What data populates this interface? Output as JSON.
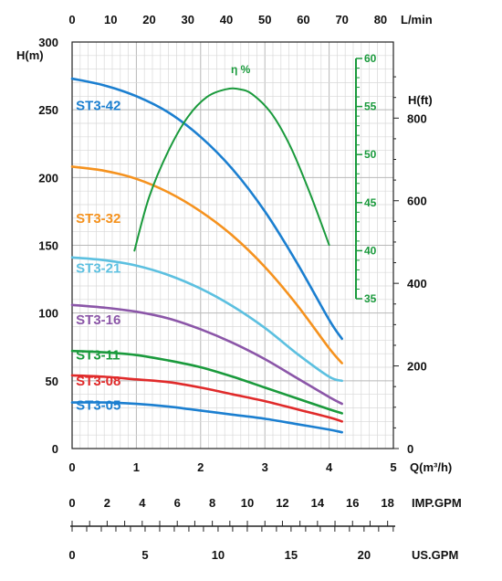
{
  "chart_data": {
    "type": "line",
    "title": "",
    "axes": {
      "x_main": {
        "label": "Q(m³/h)",
        "range": [
          0,
          5
        ],
        "ticks": [
          "0",
          "1",
          "2",
          "3",
          "4",
          "5"
        ],
        "grid": true
      },
      "x_top": {
        "label": "L/min",
        "range": [
          0,
          83.33
        ],
        "ticks": [
          "0",
          "10",
          "20",
          "30",
          "40",
          "50",
          "60",
          "70",
          "80"
        ]
      },
      "y_left": {
        "label": "H(m)",
        "range": [
          0,
          300
        ],
        "ticks": [
          "0",
          "50",
          "100",
          "150",
          "200",
          "250",
          "300"
        ],
        "grid": true
      },
      "y_right": {
        "label": "H(ft)",
        "range": [
          0,
          984.25
        ],
        "ticks": [
          "0",
          "200",
          "400",
          "600",
          "800"
        ]
      },
      "y_eff": {
        "label": "η %",
        "range": [
          35,
          60
        ],
        "ticks": [
          "35",
          "40",
          "45",
          "50",
          "55",
          "60"
        ],
        "color": "#1a9a3c"
      },
      "x_imp": {
        "label": "IMP.GPM",
        "range": [
          0,
          18.33
        ],
        "ticks": [
          "0",
          "2",
          "4",
          "6",
          "8",
          "10",
          "12",
          "14",
          "16",
          "18"
        ]
      },
      "x_us": {
        "label": "US.GPM",
        "range": [
          0,
          22.01
        ],
        "ticks": [
          "0",
          "5",
          "10",
          "15",
          "20"
        ]
      }
    },
    "series": [
      {
        "name": "ST3-42",
        "color": "#1b7fd0",
        "label_at": [
          0.4,
          253
        ],
        "x": [
          0,
          0.5,
          1,
          1.5,
          2,
          2.5,
          3,
          3.5,
          4,
          4.2
        ],
        "y": [
          273,
          268,
          260,
          248,
          230,
          206,
          175,
          137,
          95,
          81
        ]
      },
      {
        "name": "ST3-32",
        "color": "#f5921e",
        "label_at": [
          0.4,
          170
        ],
        "x": [
          0,
          0.5,
          1,
          1.5,
          2,
          2.5,
          3,
          3.5,
          4,
          4.2
        ],
        "y": [
          208,
          205,
          199,
          189,
          175,
          157,
          134,
          106,
          74,
          63
        ]
      },
      {
        "name": "ST3-21",
        "color": "#5cc0e0",
        "label_at": [
          0.4,
          133
        ],
        "x": [
          0,
          0.5,
          1,
          1.5,
          2,
          2.5,
          3,
          3.5,
          4,
          4.2
        ],
        "y": [
          141,
          139,
          135,
          128,
          118,
          105,
          89,
          70,
          53,
          50
        ]
      },
      {
        "name": "ST3-16",
        "color": "#8b56a8",
        "label_at": [
          0.4,
          95
        ],
        "x": [
          0,
          0.5,
          1,
          1.5,
          2,
          2.5,
          3,
          3.5,
          4,
          4.2
        ],
        "y": [
          106,
          104,
          101,
          96,
          88,
          78,
          66,
          52,
          38,
          33
        ]
      },
      {
        "name": "ST3-11",
        "color": "#1a9a3c",
        "label_at": [
          0.4,
          69
        ],
        "x": [
          0,
          0.5,
          1,
          1.5,
          2,
          2.5,
          3,
          3.5,
          4,
          4.2
        ],
        "y": [
          72,
          71,
          69,
          65,
          60,
          53,
          45,
          37,
          29,
          26
        ]
      },
      {
        "name": "ST3-08",
        "color": "#e02a2a",
        "label_at": [
          0.4,
          50
        ],
        "x": [
          0,
          0.5,
          1,
          1.5,
          2,
          2.5,
          3,
          3.5,
          4,
          4.2
        ],
        "y": [
          54,
          53,
          51,
          49,
          45,
          40,
          35,
          29,
          23,
          20
        ]
      },
      {
        "name": "ST3-05",
        "color": "#1b7fd0",
        "label_at": [
          0.4,
          32
        ],
        "x": [
          0,
          0.5,
          1,
          1.5,
          2,
          2.5,
          3,
          3.5,
          4,
          4.2
        ],
        "y": [
          34,
          34,
          33,
          31,
          28,
          25,
          22,
          18,
          14,
          12
        ]
      }
    ],
    "efficiency": {
      "name": "η %",
      "color": "#1a9a3c",
      "x": [
        0.97,
        1.2,
        1.5,
        1.8,
        2.1,
        2.4,
        2.6,
        2.8,
        3.1,
        3.4,
        3.7,
        4.0
      ],
      "y": [
        40,
        45.6,
        50.4,
        53.9,
        56,
        56.8,
        56.8,
        56.3,
        54.3,
        50.8,
        46,
        40.6
      ]
    }
  }
}
